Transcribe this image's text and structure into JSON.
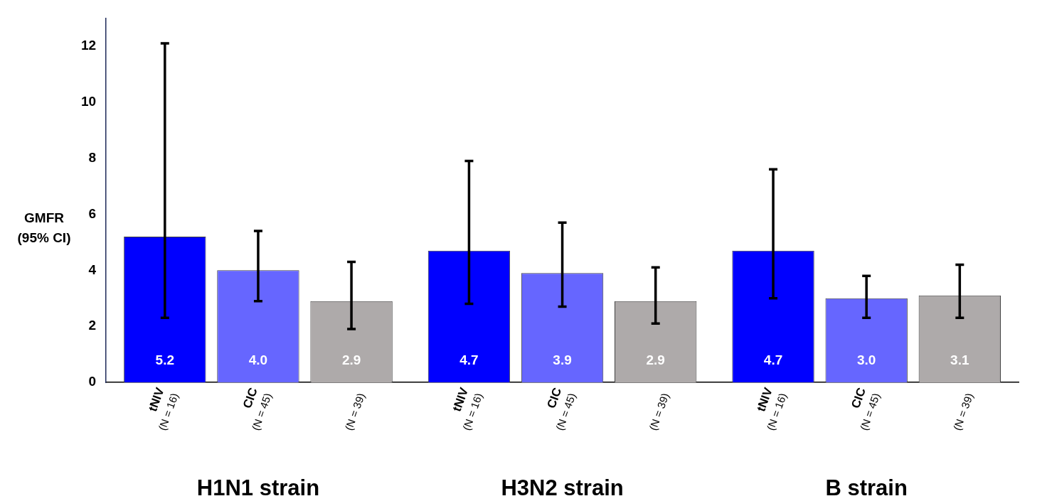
{
  "chart_data": {
    "type": "bar",
    "ylabel": "GMFR (95% CI)",
    "categories": [
      "H1N1 strain",
      "H3N2 strain",
      "B strain"
    ],
    "series": [
      {
        "name": "tNIV (N = 16)",
        "color": "#0000ff",
        "values": [
          5.2,
          4.7,
          4.7
        ],
        "value_labels": [
          "5.2",
          "4.7",
          "4.7"
        ],
        "errors": [
          [
            2.3,
            12.1
          ],
          [
            2.8,
            7.9
          ],
          [
            3.0,
            7.6
          ]
        ]
      },
      {
        "name": "CIC (N = 45)",
        "color": "#6666ff",
        "values": [
          4.0,
          3.9,
          3.0
        ],
        "value_labels": [
          "4.0",
          "3.9",
          "3.0"
        ],
        "errors": [
          [
            2.9,
            5.4
          ],
          [
            2.7,
            5.7
          ],
          [
            2.3,
            3.8
          ]
        ]
      },
      {
        "name": "(N = 39)",
        "color": "#aeaaaa",
        "values": [
          2.9,
          2.9,
          3.1
        ],
        "value_labels": [
          "2.9",
          "2.9",
          "3.1"
        ],
        "errors": [
          [
            1.9,
            4.3
          ],
          [
            2.1,
            4.1
          ],
          [
            2.3,
            4.2
          ]
        ]
      }
    ],
    "ylim": [
      0,
      13
    ],
    "yticks": [
      0,
      2,
      4,
      6,
      8,
      10,
      12
    ],
    "grid": false,
    "legend": false
  }
}
